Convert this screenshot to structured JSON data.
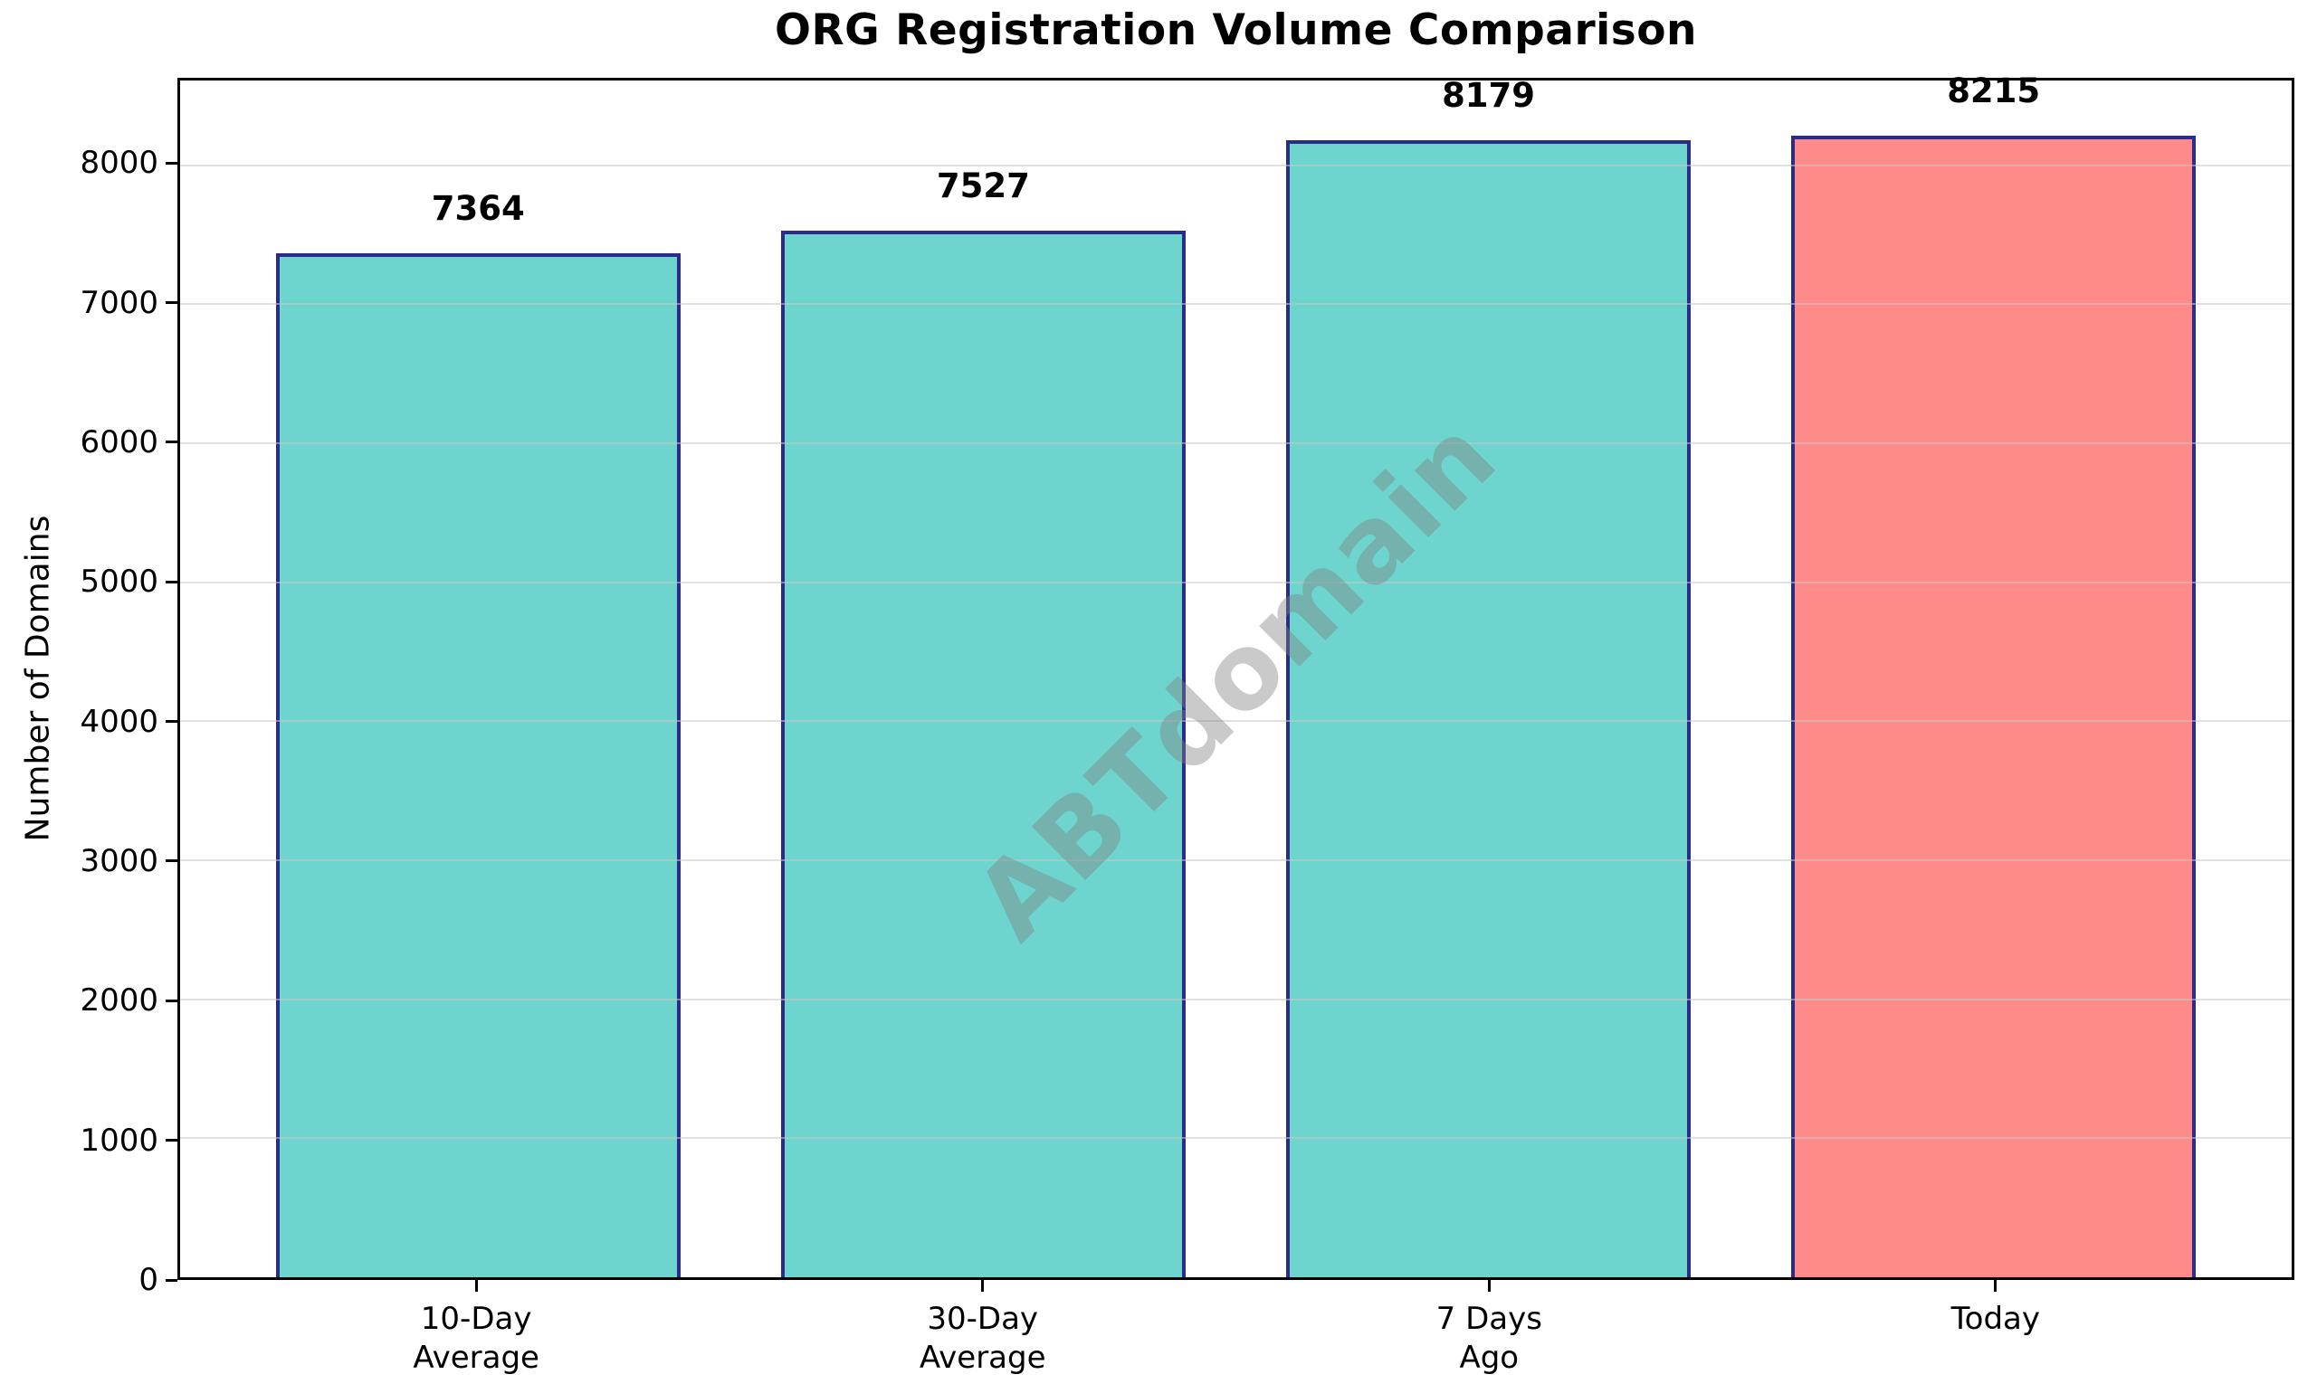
{
  "chart_data": {
    "type": "bar",
    "title": "ORG Registration Volume Comparison",
    "ylabel": "Number of Domains",
    "xlabel": "",
    "categories": [
      "10-Day\nAverage",
      "30-Day\nAverage",
      "7 Days\nAgo",
      "Today"
    ],
    "values": [
      7364,
      7527,
      8179,
      8215
    ],
    "value_labels": [
      "7364",
      "7527",
      "8179",
      "8215"
    ],
    "bar_colors": [
      "#6DD5CD",
      "#6DD5CD",
      "#6DD5CD",
      "#FF8A8A"
    ],
    "bar_edge_color": "#2B2B8A",
    "y_ticks": [
      0,
      1000,
      2000,
      3000,
      4000,
      5000,
      6000,
      7000,
      8000
    ],
    "ylim": [
      0,
      8610
    ],
    "grid": "horizontal",
    "grid_color": "#c8c8c8",
    "legend": "none",
    "watermark": "ABTdomain",
    "watermark_color": "#808080"
  }
}
